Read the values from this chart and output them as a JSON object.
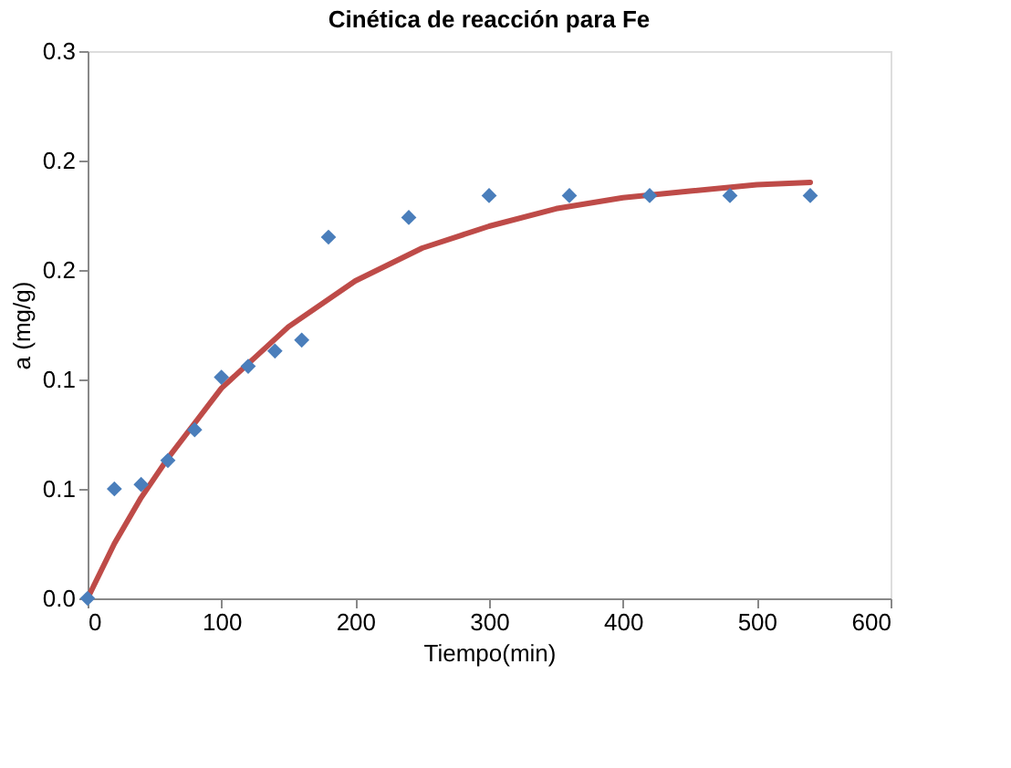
{
  "chart_data": {
    "type": "scatter",
    "title": "Cinética de reacción para Fe",
    "xlabel": "Tiempo(min)",
    "ylabel": "a (mg/g)",
    "xlim": [
      0,
      600
    ],
    "xticks": [
      0,
      100,
      200,
      300,
      400,
      500,
      600
    ],
    "ylim": [
      0,
      0.25
    ],
    "yticks": [
      {
        "value": 0,
        "label": "0.0"
      },
      {
        "value": 0.05,
        "label": "0.1"
      },
      {
        "value": 0.1,
        "label": "0.1"
      },
      {
        "value": 0.15,
        "label": "0.2"
      },
      {
        "value": 0.2,
        "label": "0.2"
      },
      {
        "value": 0.25,
        "label": "0.3"
      }
    ],
    "grid": false,
    "series": [
      {
        "marker": "diamond",
        "color": "#4a7ebb",
        "x": [
          0,
          20,
          40,
          60,
          80,
          100,
          120,
          140,
          160,
          180,
          240,
          300,
          360,
          420,
          480,
          540
        ],
        "values": [
          0,
          0.05,
          0.052,
          0.063,
          0.077,
          0.101,
          0.106,
          0.113,
          0.118,
          0.165,
          0.174,
          0.184,
          0.184,
          0.184,
          0.184,
          0.184
        ]
      },
      {
        "type": "line",
        "marker": "none",
        "line_style": "solid",
        "color": "#be4b48",
        "x": [
          0,
          20,
          40,
          60,
          80,
          100,
          150,
          200,
          250,
          300,
          350,
          400,
          450,
          500,
          540
        ],
        "values": [
          0,
          0.025,
          0.046,
          0.064,
          0.08,
          0.096,
          0.124,
          0.145,
          0.16,
          0.17,
          0.178,
          0.183,
          0.186,
          0.189,
          0.19
        ]
      }
    ]
  }
}
